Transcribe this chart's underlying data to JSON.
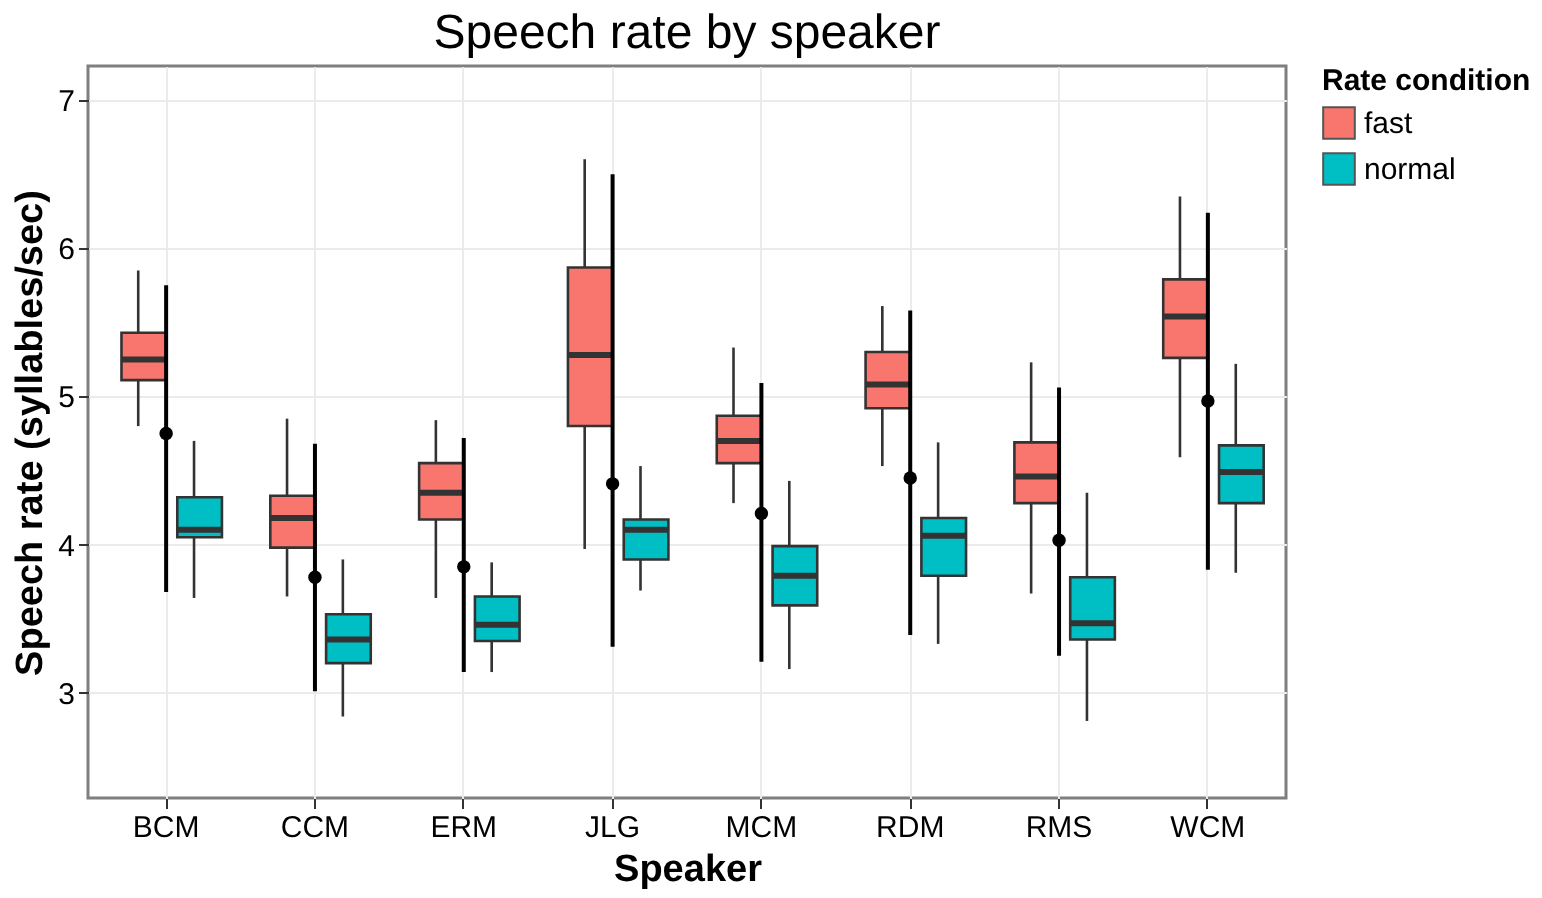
{
  "chart_data": {
    "type": "box",
    "title": "Speech rate by speaker",
    "xlabel": "Speaker",
    "ylabel": "Speech rate (syllables/sec)",
    "legend_title": "Rate condition",
    "categories": [
      "BCM",
      "CCM",
      "ERM",
      "JLG",
      "MCM",
      "RDM",
      "RMS",
      "WCM"
    ],
    "ylim": [
      2.29,
      7.23
    ],
    "yticks": [
      3,
      4,
      5,
      6,
      7
    ],
    "grid": true,
    "legend": "right",
    "series": [
      {
        "name": "fast",
        "color": "#f8766d",
        "boxes": [
          {
            "low": 4.8,
            "q1": 5.11,
            "median": 5.25,
            "q3": 5.43,
            "high": 5.85
          },
          {
            "low": 3.65,
            "q1": 3.98,
            "median": 4.18,
            "q3": 4.33,
            "high": 4.85
          },
          {
            "low": 3.64,
            "q1": 4.17,
            "median": 4.35,
            "q3": 4.55,
            "high": 4.84
          },
          {
            "low": 3.97,
            "q1": 4.8,
            "median": 5.28,
            "q3": 5.87,
            "high": 6.6
          },
          {
            "low": 4.28,
            "q1": 4.55,
            "median": 4.7,
            "q3": 4.87,
            "high": 5.33
          },
          {
            "low": 4.53,
            "q1": 4.92,
            "median": 5.08,
            "q3": 5.3,
            "high": 5.61
          },
          {
            "low": 3.67,
            "q1": 4.28,
            "median": 4.46,
            "q3": 4.69,
            "high": 5.23
          },
          {
            "low": 4.59,
            "q1": 5.26,
            "median": 5.54,
            "q3": 5.79,
            "high": 6.35
          }
        ]
      },
      {
        "name": "normal",
        "color": "#00bfc4",
        "boxes": [
          {
            "low": 3.64,
            "q1": 4.05,
            "median": 4.1,
            "q3": 4.32,
            "high": 4.7
          },
          {
            "low": 2.84,
            "q1": 3.2,
            "median": 3.36,
            "q3": 3.53,
            "high": 3.9
          },
          {
            "low": 3.14,
            "q1": 3.35,
            "median": 3.46,
            "q3": 3.65,
            "high": 3.88
          },
          {
            "low": 3.69,
            "q1": 3.9,
            "median": 4.1,
            "q3": 4.17,
            "high": 4.53
          },
          {
            "low": 3.16,
            "q1": 3.59,
            "median": 3.79,
            "q3": 3.99,
            "high": 4.43
          },
          {
            "low": 3.33,
            "q1": 3.79,
            "median": 4.06,
            "q3": 4.18,
            "high": 4.69
          },
          {
            "low": 2.81,
            "q1": 3.36,
            "median": 3.47,
            "q3": 3.78,
            "high": 4.35
          },
          {
            "low": 3.81,
            "q1": 4.28,
            "median": 4.49,
            "q3": 4.67,
            "high": 5.22
          }
        ]
      },
      {
        "type": "scatter",
        "color": "#000000",
        "x": [
          "BCM",
          "CCM",
          "ERM",
          "JLG",
          "MCM",
          "RDM",
          "RMS",
          "WCM"
        ],
        "values": [
          4.75,
          3.78,
          3.85,
          4.41,
          4.21,
          4.45,
          4.03,
          4.97
        ],
        "errors": [
          [
            3.68,
            5.75
          ],
          [
            3.01,
            4.68
          ],
          [
            3.14,
            4.72
          ],
          [
            3.31,
            6.5
          ],
          [
            3.21,
            5.09
          ],
          [
            3.39,
            5.58
          ],
          [
            3.25,
            5.06
          ],
          [
            3.83,
            6.24
          ]
        ]
      }
    ]
  }
}
